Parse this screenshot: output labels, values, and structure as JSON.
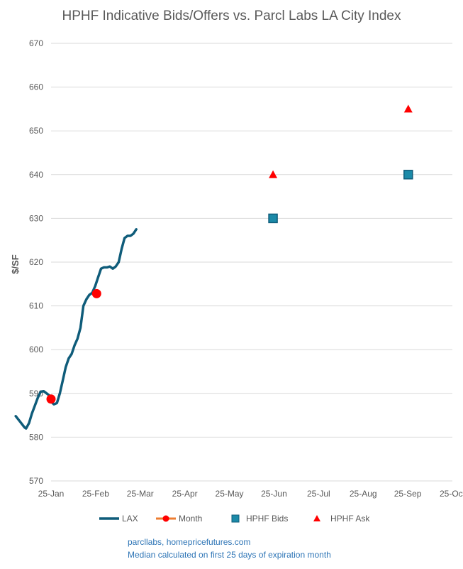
{
  "chart_data": {
    "type": "line",
    "title": "HPHF Indicative Bids/Offers vs. Parcl Labs LA City Index",
    "xlabel": "",
    "ylabel": "$/SF",
    "x_ticks": [
      "25-Jan",
      "25-Feb",
      "25-Mar",
      "25-Apr",
      "25-May",
      "25-Jun",
      "25-Jul",
      "25-Aug",
      "25-Sep",
      "25-Oct"
    ],
    "ylim": [
      570,
      670
    ],
    "y_ticks": [
      570,
      580,
      590,
      600,
      610,
      620,
      630,
      640,
      650,
      660,
      670
    ],
    "grid": true,
    "legend_position": "bottom",
    "colors": {
      "lax": "#0F5C7A",
      "month": "#ED7D31",
      "month_marker": "#FF0000",
      "bids": "#1B8AA8",
      "bids_edge": "#0F5C7A",
      "ask": "#FF0000",
      "grid": "#D9D9D9",
      "axis_text": "#595959"
    },
    "series": [
      {
        "name": "LAX",
        "style": "line",
        "x": [
          "2025-01-01",
          "2025-01-04",
          "2025-01-07",
          "2025-01-08",
          "2025-01-10",
          "2025-01-12",
          "2025-01-14",
          "2025-01-16",
          "2025-01-18",
          "2025-01-20",
          "2025-01-22",
          "2025-01-24",
          "2025-01-26",
          "2025-01-27",
          "2025-01-29",
          "2025-01-31",
          "2025-02-02",
          "2025-02-04",
          "2025-02-06",
          "2025-02-08",
          "2025-02-10",
          "2025-02-12",
          "2025-02-14",
          "2025-02-16",
          "2025-02-18",
          "2025-02-20",
          "2025-02-22",
          "2025-02-24",
          "2025-02-26",
          "2025-02-28",
          "2025-03-02",
          "2025-03-04",
          "2025-03-06",
          "2025-03-08",
          "2025-03-10",
          "2025-03-12",
          "2025-03-14",
          "2025-03-16",
          "2025-03-18",
          "2025-03-20",
          "2025-03-22",
          "2025-03-24"
        ],
        "values": [
          584.8,
          583.5,
          582.2,
          582.0,
          583.2,
          585.4,
          587.2,
          589.0,
          590.4,
          590.5,
          590.0,
          589.5,
          587.8,
          587.5,
          587.8,
          590.0,
          593.0,
          596.0,
          598.0,
          599.0,
          601.0,
          602.5,
          605.0,
          610.0,
          611.5,
          612.5,
          613.0,
          614.5,
          616.5,
          618.5,
          618.8,
          618.8,
          619.0,
          618.5,
          619.0,
          620.0,
          623.0,
          625.5,
          626.0,
          626.0,
          626.5,
          627.5
        ]
      },
      {
        "name": "Month",
        "style": "line-marker",
        "x": [
          "2025-01-25",
          "2025-02-25"
        ],
        "values": [
          588.7,
          612.8
        ]
      },
      {
        "name": "HPHF Bids",
        "style": "square",
        "x": [
          "2025-06-25",
          "2025-09-25"
        ],
        "values": [
          630,
          640
        ]
      },
      {
        "name": "HPHF Ask",
        "style": "triangle",
        "x": [
          "2025-06-25",
          "2025-09-25"
        ],
        "values": [
          640,
          655
        ]
      }
    ]
  },
  "footer": {
    "line1": "parcllabs, homepricefutures.com",
    "line2": "Median calculated on first 25 days of expiration month"
  }
}
